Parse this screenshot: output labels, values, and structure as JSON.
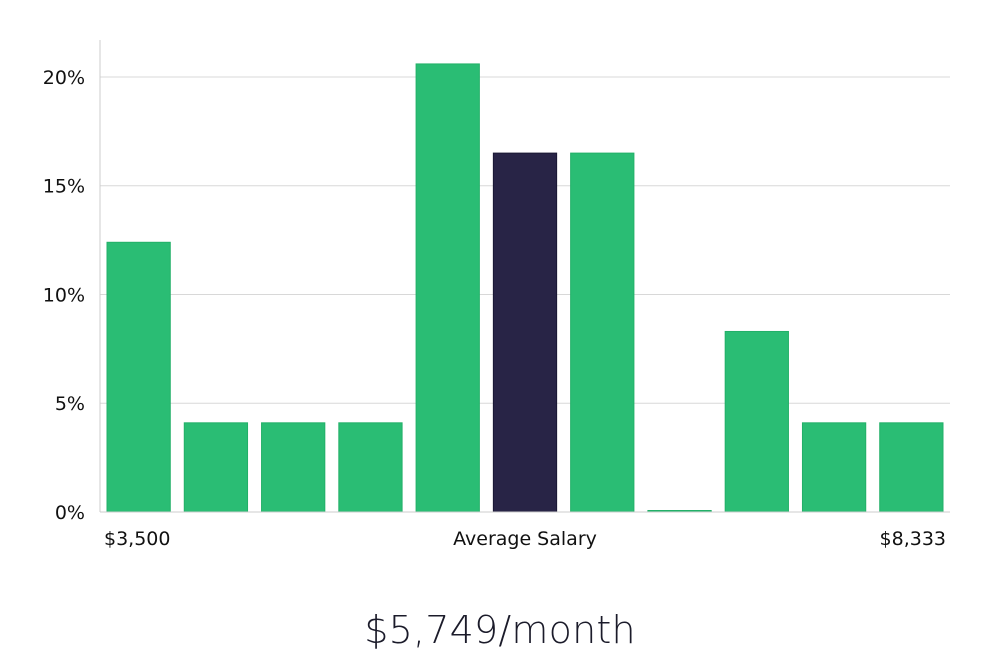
{
  "chart_data": {
    "type": "bar",
    "categories": [
      "1",
      "2",
      "3",
      "4",
      "5",
      "6",
      "7",
      "8",
      "9",
      "10",
      "11"
    ],
    "values": [
      12.4,
      4.1,
      4.1,
      4.1,
      20.6,
      16.5,
      16.5,
      0,
      8.3,
      4.1,
      4.1
    ],
    "highlight_index": 5,
    "ylim": [
      0,
      21.7
    ],
    "yticks": [
      0,
      5,
      10,
      15,
      20
    ],
    "ytick_labels": [
      "0%",
      "5%",
      "10%",
      "15%",
      "20%"
    ],
    "grid": true,
    "x_min_label": "$3,500",
    "x_center_label": "Average Salary",
    "x_max_label": "$8,333"
  },
  "colors": {
    "bar": "#2abd74",
    "highlight": "#282446",
    "grid": "#d8d8d8",
    "axis": "#cccccc",
    "text": "#111111"
  },
  "summary": {
    "salary": "$5,749/month"
  }
}
